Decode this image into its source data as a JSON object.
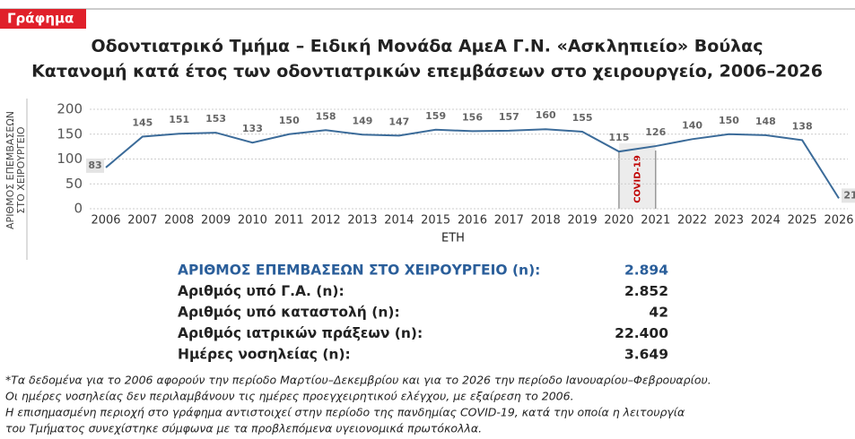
{
  "badge": "Γράφημα",
  "chart_data": {
    "type": "line",
    "title": "Οδοντιατρικό Τμήμα – Ειδική Μονάδα ΑμεΑ Γ.Ν. «Ασκληπιείο» Βούλας",
    "subtitle": "Κατανομή κατά έτος των οδοντιατρικών επεμβάσεων στο χειρουργείο, 2006–2026",
    "y_label": [
      "ΑΡΙΘΜΟΣ ΕΠΕΜΒΑΣΕΩΝ",
      "ΣΤΟ ΧΕΙΡΟΥΡΓΕΙΟ"
    ],
    "x_label": "ΕΤΗ",
    "categories": [
      "2006",
      "2007",
      "2008",
      "2009",
      "2010",
      "2011",
      "2012",
      "2013",
      "2014",
      "2015",
      "2016",
      "2017",
      "2018",
      "2019",
      "2020",
      "2021",
      "2022",
      "2023",
      "2024",
      "2025",
      "2026"
    ],
    "series": [
      {
        "name": "Επεμβάσεις",
        "color": "#3b6b99",
        "values": [
          83,
          145,
          151,
          153,
          133,
          150,
          158,
          149,
          147,
          159,
          156,
          157,
          160,
          155,
          115,
          126,
          140,
          150,
          148,
          138,
          21
        ]
      }
    ],
    "ylim": [
      0,
      200
    ],
    "yticks": [
      0,
      50,
      100,
      150,
      200
    ],
    "grid": true,
    "annotation": {
      "label": "COVID-19",
      "from": "2020",
      "to": "2021",
      "color": "#c00000"
    }
  },
  "summary": {
    "rows": [
      {
        "label": "ΑΡΙΘΜΟΣ ΕΠΕΜΒΑΣΕΩΝ ΣΤΟ ΧΕΙΡΟΥΡΓΕΙΟ (n):",
        "value": "2.894"
      },
      {
        "label": "Αριθμός υπό Γ.Α. (n):",
        "value": "2.852"
      },
      {
        "label": "Αριθμός υπό καταστολή (n):",
        "value": "42"
      },
      {
        "label": "Αριθμός ιατρικών πράξεων (n):",
        "value": "22.400"
      },
      {
        "label": "Ημέρες νοσηλείας (n):",
        "value": "3.649"
      }
    ]
  },
  "notes": [
    "*Τα δεδομένα για το 2006 αφορούν την περίοδο Μαρτίου–Δεκεμβρίου και για το 2026 την περίοδο Ιανουαρίου–Φεβρουαρίου.",
    "Οι ημέρες νοσηλείας δεν περιλαμβάνουν τις ημέρες προεγχειρητικού ελέγχου, με εξαίρεση το 2006.",
    "Η επισημασμένη περιοχή στο γράφημα αντιστοιχεί στην περίοδο της πανδημίας COVID-19, κατά την οποία η λειτουργία",
    "του Τμήματος συνεχίστηκε σύμφωνα με τα προβλεπόμενα υγειονομικά πρωτόκολλα."
  ]
}
